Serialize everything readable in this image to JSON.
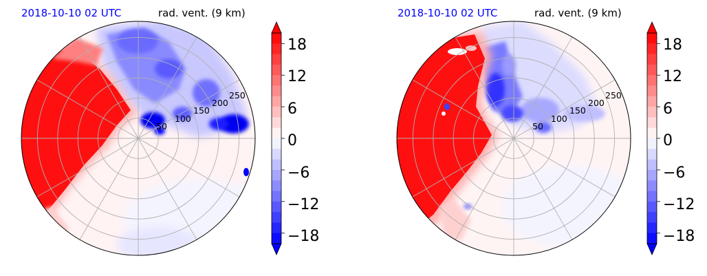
{
  "chart_data": [
    {
      "type": "heatmap",
      "projection": "polar",
      "time_label": "2018-10-10 02 UTC",
      "title": "rad. vent. (9 km)",
      "time_color": "#0000ff",
      "range_rings": [
        50,
        100,
        150,
        200,
        250
      ],
      "range_max": 290,
      "azimuth_grid_deg": 30,
      "grid": true,
      "colorbar": {
        "ticks": [
          "18",
          "12",
          "6",
          "0",
          "−6",
          "−12",
          "−18"
        ],
        "tick_values": [
          18,
          12,
          6,
          0,
          -6,
          -12,
          -18
        ],
        "vmin": -20,
        "vmax": 20,
        "levels": 20,
        "extend": "both",
        "cmap": "bwr",
        "neg_color": "#0000ff",
        "pos_color": "#ff0000",
        "mid_color": "#ffffff"
      },
      "regions": [
        {
          "sign": "positive",
          "azimuth_from": 200,
          "azimuth_to": 325,
          "value": 20,
          "note": "saturated red west sector"
        },
        {
          "sign": "negative",
          "azimuth_from": 330,
          "azimuth_to": 80,
          "value": -8
        }
      ]
    },
    {
      "type": "heatmap",
      "projection": "polar",
      "time_label": "2018-10-10 02 UTC",
      "title": "rad. vent. (9 km)",
      "time_color": "#0000ff",
      "range_rings": [
        50,
        100,
        150,
        200,
        250
      ],
      "range_max": 290,
      "azimuth_grid_deg": 30,
      "grid": true,
      "colorbar": {
        "ticks": [
          "18",
          "12",
          "6",
          "0",
          "−6",
          "−12",
          "−18"
        ],
        "tick_values": [
          18,
          12,
          6,
          0,
          -6,
          -12,
          -18
        ],
        "vmin": -20,
        "vmax": 20,
        "levels": 20,
        "extend": "both",
        "cmap": "bwr",
        "neg_color": "#0000ff",
        "pos_color": "#ff0000",
        "mid_color": "#ffffff"
      },
      "regions": [
        {
          "sign": "positive",
          "azimuth_from": 190,
          "azimuth_to": 340,
          "value": 20
        },
        {
          "sign": "negative",
          "azimuth_from": 0,
          "azimuth_to": 90,
          "value": -8
        }
      ]
    }
  ]
}
